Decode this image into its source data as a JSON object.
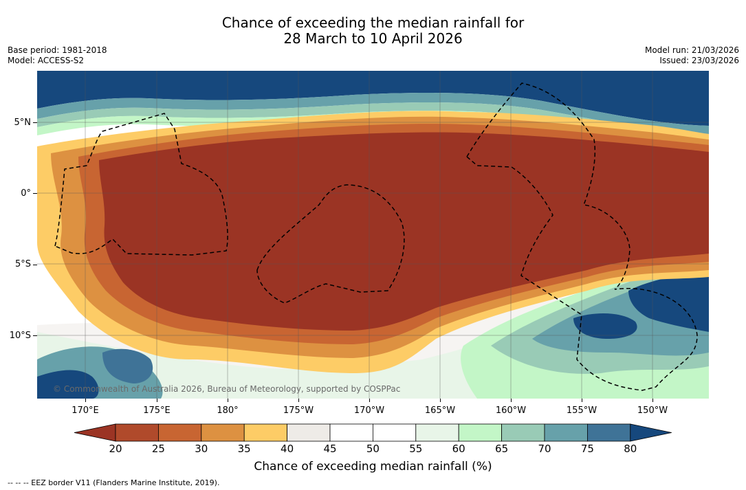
{
  "title": {
    "line1": "Chance of exceeding the median rainfall for",
    "line2": "28 March to 10 April 2026"
  },
  "meta_left": {
    "base_period": "Base period: 1981-2018",
    "model": "Model: ACCESS-S2"
  },
  "meta_right": {
    "model_run": "Model run: 21/03/2026",
    "issued": "Issued: 23/03/2026"
  },
  "lat_labels": [
    "5°N",
    "0°",
    "5°S",
    "10°S"
  ],
  "lon_labels": [
    "170°E",
    "175°E",
    "180°",
    "175°W",
    "170°W",
    "165°W",
    "160°W",
    "155°W",
    "150°W"
  ],
  "copyright": "© Commonwealth of Australia 2026, Bureau of Meteorology, supported by COSPPac",
  "colorbar": {
    "ticks": [
      "20",
      "25",
      "30",
      "35",
      "40",
      "45",
      "50",
      "55",
      "60",
      "65",
      "70",
      "75",
      "80"
    ],
    "colors": [
      "#9b3424",
      "#b04a2b",
      "#c86532",
      "#dd9141",
      "#fdcc66",
      "#eeebe7",
      "#ffffff",
      "#ffffff",
      "#e8f5e8",
      "#c3f6c7",
      "#99cbb6",
      "#67a1aa",
      "#3f7397",
      "#16487d"
    ],
    "label": "Chance of exceeding median rainfall (%)"
  },
  "footer": "-- -- -- EEZ border V11 (Flanders Marine Institute, 2019)."
}
